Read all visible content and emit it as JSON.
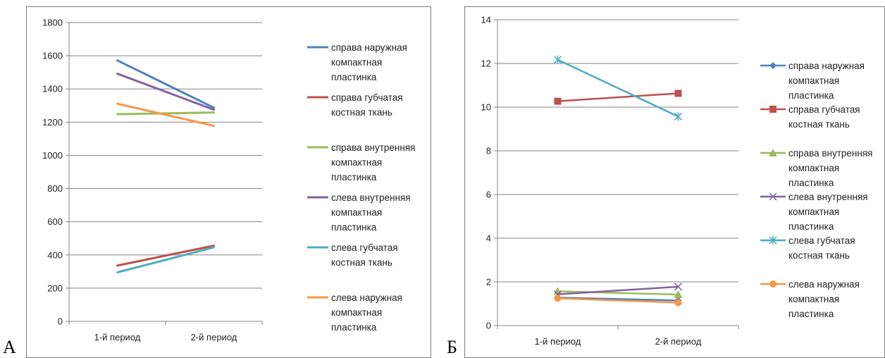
{
  "panels": [
    {
      "letter": "А",
      "chart_data": {
        "type": "line",
        "categories": [
          "1-й период",
          "2-й период"
        ],
        "ylim": [
          0,
          1800
        ],
        "yticks": [
          0,
          200,
          400,
          600,
          800,
          1000,
          1200,
          1400,
          1600,
          1800
        ],
        "grid": true,
        "markers": false,
        "legend_position": "right",
        "series": [
          {
            "name": [
              "справа наружная",
              "компактная",
              "пластинка"
            ],
            "color": "#4f81bd",
            "values": [
              1572,
              1287
            ]
          },
          {
            "name": [
              "справа губчатая",
              "костная ткань"
            ],
            "color": "#c0504d",
            "values": [
              336,
              456
            ]
          },
          {
            "name": [
              "справа внутренняя",
              "компактная",
              "пластинка"
            ],
            "color": "#9bbb59",
            "values": [
              1248,
              1258
            ]
          },
          {
            "name": [
              "слева внутренняя",
              "компактная",
              "пластинка"
            ],
            "color": "#8064a2",
            "values": [
              1492,
              1275
            ]
          },
          {
            "name": [
              "слева губчатая",
              "костная ткань"
            ],
            "color": "#4bacc6",
            "values": [
              295,
              446
            ]
          },
          {
            "name": [
              "слева наружная",
              "компактная",
              "пластинка"
            ],
            "color": "#f79646",
            "values": [
              1311,
              1178
            ]
          }
        ]
      }
    },
    {
      "letter": "Б",
      "chart_data": {
        "type": "line",
        "categories": [
          "1-й период",
          "2-й период"
        ],
        "ylim": [
          0,
          14
        ],
        "yticks": [
          0,
          2,
          4,
          6,
          8,
          10,
          12,
          14
        ],
        "grid": true,
        "markers": true,
        "legend_position": "right",
        "series": [
          {
            "name": [
              "справа наружная",
              "компактная",
              "пластинка"
            ],
            "color": "#4f81bd",
            "marker": "diamond",
            "values": [
              1.28,
              1.15
            ]
          },
          {
            "name": [
              "справа губчатая",
              "костная ткань"
            ],
            "color": "#c0504d",
            "marker": "square",
            "values": [
              10.27,
              10.63
            ]
          },
          {
            "name": [
              "справа внутренняя",
              "компактная",
              "пластинка"
            ],
            "color": "#9bbb59",
            "marker": "triangle",
            "values": [
              1.57,
              1.42
            ]
          },
          {
            "name": [
              "слева внутренняя",
              "компактная",
              "пластинка"
            ],
            "color": "#8064a2",
            "marker": "x",
            "values": [
              1.43,
              1.78
            ]
          },
          {
            "name": [
              "слева губчатая",
              "костная ткань"
            ],
            "color": "#4bacc6",
            "marker": "star",
            "values": [
              12.17,
              9.57
            ]
          },
          {
            "name": [
              "слева наружная",
              "компактная",
              "пластинка"
            ],
            "color": "#f79646",
            "marker": "circle",
            "values": [
              1.25,
              1.05
            ]
          }
        ]
      }
    }
  ]
}
